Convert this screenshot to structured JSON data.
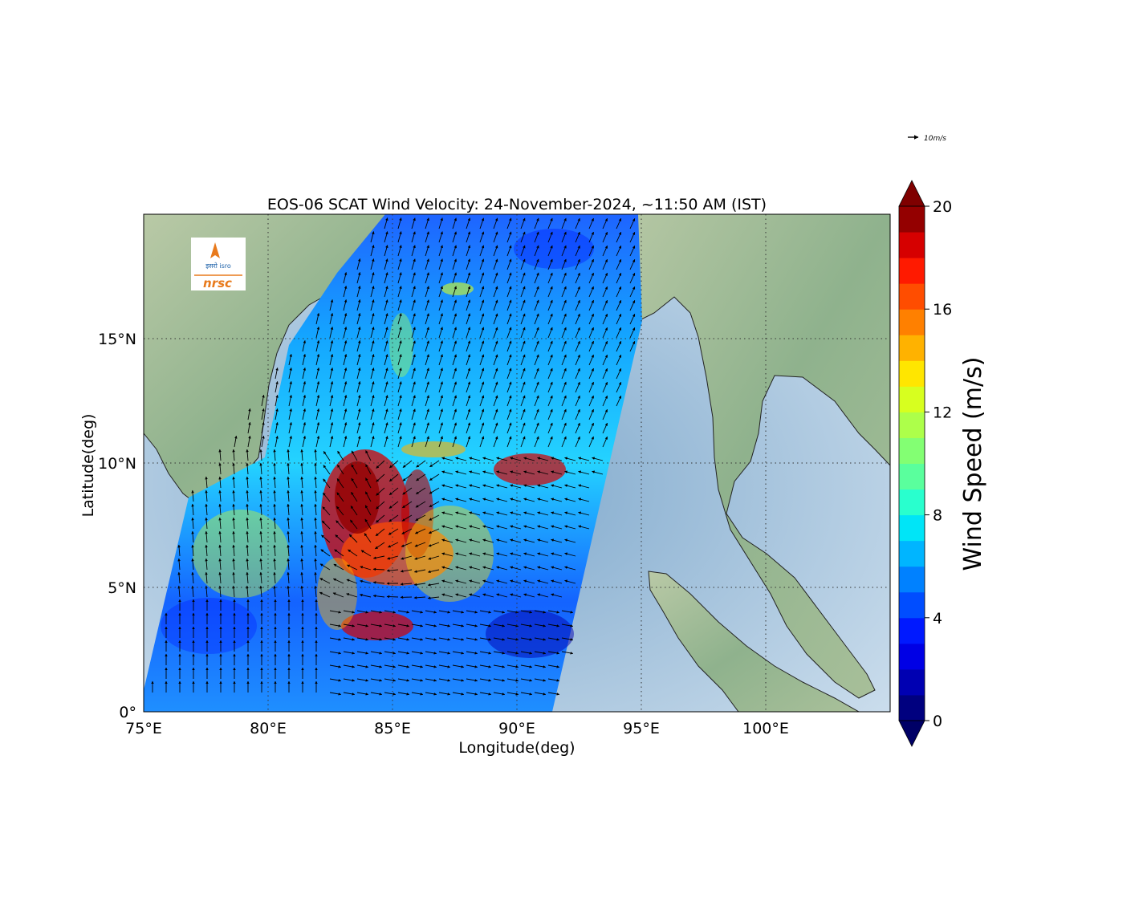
{
  "title": "EOS-06 SCAT Wind Velocity: 24-November-2024, ~11:50 AM (IST)",
  "xlabel": "Longitude(deg)",
  "ylabel": "Latitude(deg)",
  "x_ticks": [
    "75°E",
    "80°E",
    "85°E",
    "90°E",
    "95°E",
    "100°E"
  ],
  "y_ticks": [
    "0°",
    "5°N",
    "10°N",
    "15°N"
  ],
  "extent": {
    "lon_min": 75,
    "lon_max": 105,
    "lat_min": 0,
    "lat_max": 20
  },
  "quiver_key": {
    "label": "10m/s",
    "value": 10
  },
  "colorbar": {
    "label": "Wind Speed (m/s)",
    "min": 0,
    "max": 20,
    "step": 1,
    "ticks": [
      "0",
      "4",
      "8",
      "12",
      "16",
      "20"
    ],
    "colors": [
      "#00007f",
      "#0000b2",
      "#0000e5",
      "#0019ff",
      "#004dff",
      "#0081ff",
      "#00b5ff",
      "#00e5f7",
      "#29ffce",
      "#5aff9d",
      "#83ff73",
      "#adff4a",
      "#d7ff1f",
      "#ffe600",
      "#ffb200",
      "#ff8000",
      "#ff4d00",
      "#ff1a00",
      "#d60000",
      "#940000"
    ],
    "under_color": "#000066",
    "over_color": "#7f0000"
  },
  "logo": {
    "top_text": "इसरो isro",
    "bottom_text": "nrsc"
  }
}
